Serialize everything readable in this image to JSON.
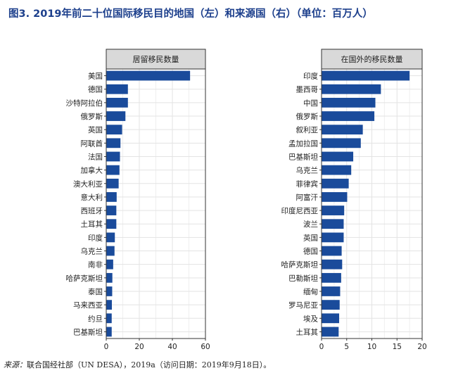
{
  "figure_title": "图3. 2019年前二十位国际移民目的地国（左）和来源国（右）（单位：百万人）",
  "source": {
    "label": "来源：",
    "text": "联合国经社部（UN DESA），2019a（访问日期：2019年9月18日）。"
  },
  "colors": {
    "bar": "#1a4b9b",
    "title": "#1c3f8c",
    "panel_header_bg": "#d9d9d9",
    "grid": "#e3e3e3"
  },
  "chart_data": [
    {
      "type": "bar",
      "orientation": "horizontal",
      "title": "居留移民数量",
      "categories": [
        "美国",
        "德国",
        "沙特阿拉伯",
        "俄罗斯",
        "英国",
        "阿联酋",
        "法国",
        "加拿大",
        "澳大利亚",
        "意大利",
        "西班牙",
        "土耳其",
        "印度",
        "乌克兰",
        "南非",
        "哈萨克斯坦",
        "泰国",
        "马来西亚",
        "约旦",
        "巴基斯坦"
      ],
      "values": [
        50.7,
        13.1,
        13.1,
        11.6,
        9.6,
        8.6,
        8.3,
        8.0,
        7.5,
        6.3,
        6.1,
        6.1,
        5.2,
        5.0,
        4.2,
        3.7,
        3.6,
        3.4,
        3.3,
        3.3
      ],
      "xlim": [
        0,
        60
      ],
      "xticks": [
        0,
        20,
        40,
        60
      ],
      "xlabel": "",
      "ylabel": ""
    },
    {
      "type": "bar",
      "orientation": "horizontal",
      "title": "在国外的移民数量",
      "categories": [
        "印度",
        "墨西哥",
        "中国",
        "俄罗斯",
        "叙利亚",
        "孟加拉国",
        "巴基斯坦",
        "乌克兰",
        "菲律宾",
        "阿富汗",
        "印度尼西亚",
        "波兰",
        "英国",
        "德国",
        "哈萨克斯坦",
        "巴勒斯坦",
        "缅甸",
        "罗马尼亚",
        "埃及",
        "土耳其"
      ],
      "values": [
        17.5,
        11.8,
        10.7,
        10.5,
        8.2,
        7.8,
        6.3,
        5.9,
        5.4,
        5.1,
        4.5,
        4.4,
        4.4,
        4.0,
        4.1,
        3.9,
        3.7,
        3.6,
        3.5,
        3.4
      ],
      "xlim": [
        0,
        20
      ],
      "xticks": [
        0,
        5,
        10,
        15,
        20
      ],
      "xlabel": "",
      "ylabel": ""
    }
  ]
}
